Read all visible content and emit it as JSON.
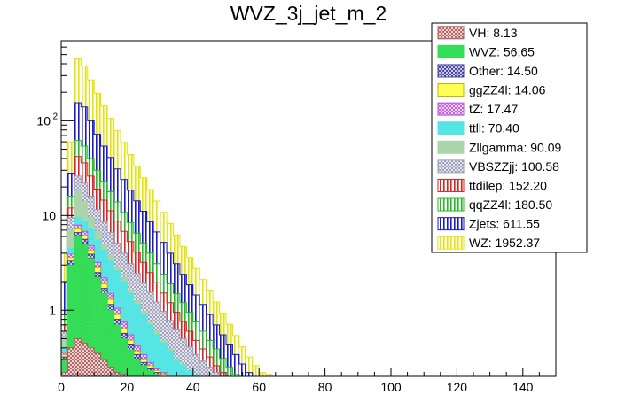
{
  "chart_data": {
    "type": "bar",
    "stacked": true,
    "title": "WVZ_3j_jet_m_2",
    "xlabel": "",
    "ylabel": "",
    "xlim": [
      0,
      150
    ],
    "ylim_log": [
      0.2,
      700
    ],
    "ylog": true,
    "x_ticks": [
      0,
      20,
      40,
      60,
      80,
      100,
      120,
      140
    ],
    "x_tick_labels": [
      "0",
      "20",
      "40",
      "60",
      "80",
      "100",
      "120",
      "140"
    ],
    "y_ticks": [
      {
        "value": 1,
        "label": "1"
      },
      {
        "value": 10,
        "label": "10"
      },
      {
        "value": 100,
        "label": "10",
        "sup": "2"
      }
    ],
    "legend_position": "top-right",
    "series": [
      {
        "name": "VH",
        "label": "VH: 8.13",
        "color": "#b05a5a",
        "pattern": "cross"
      },
      {
        "name": "WVZ",
        "label": "WVZ: 56.65",
        "color": "#33dd55",
        "pattern": "solid"
      },
      {
        "name": "Other",
        "label": "Other: 14.50",
        "color": "#3a3aa0",
        "pattern": "cross"
      },
      {
        "name": "ggZZ4l",
        "label": "ggZZ4l: 14.06",
        "color": "#ffff55",
        "pattern": "solid"
      },
      {
        "name": "tZ",
        "label": "tZ: 17.47",
        "color": "#bb55dd",
        "pattern": "cross"
      },
      {
        "name": "ttll",
        "label": "ttll: 70.40",
        "color": "#55e5e5",
        "pattern": "solid"
      },
      {
        "name": "Zllgamma",
        "label": "Zllgamma: 90.09",
        "color": "#aad5aa",
        "pattern": "solid"
      },
      {
        "name": "VBSZZjj",
        "label": "VBSZZjj: 100.58",
        "color": "#9a9ab8",
        "pattern": "cross"
      },
      {
        "name": "ttdilep",
        "label": "ttdilep: 152.20",
        "color": "#dd2222",
        "pattern": "vlines"
      },
      {
        "name": "qqZZ4l",
        "label": "qqZZ4l: 180.50",
        "color": "#22bb22",
        "pattern": "vlines"
      },
      {
        "name": "Zjets",
        "label": "Zjets: 611.55",
        "color": "#1a1acc",
        "pattern": "vlines"
      },
      {
        "name": "WZ",
        "label": "WZ: 1952.37",
        "color": "#e5e500",
        "pattern": "vlines"
      }
    ],
    "stack_levels": {
      "bin_centers": [
        1,
        3,
        5,
        7,
        9,
        11,
        13,
        15,
        17,
        19,
        21,
        23,
        25,
        27,
        29,
        31,
        33,
        35,
        37,
        39,
        41,
        43,
        45,
        47,
        49,
        51,
        53,
        55,
        57,
        59,
        61,
        63,
        65
      ],
      "VH": [
        0.22,
        0.4,
        0.5,
        0.45,
        0.4,
        0.35,
        0.3,
        0.25,
        0.22,
        0.21,
        0.2,
        0.2,
        0.2,
        0.2,
        0.2,
        0.2,
        0.2,
        0.2,
        0.2,
        0.2,
        0.2,
        0.2,
        0.2,
        0.2,
        0.2,
        0.2,
        0.2,
        0.2,
        0.2,
        0.2,
        0.2,
        0.2,
        0.2
      ],
      "WVZ": [
        0.3,
        3,
        6,
        5,
        3.5,
        2.2,
        1.5,
        1.0,
        0.7,
        0.5,
        0.38,
        0.3,
        0.26,
        0.23,
        0.21,
        0.2,
        0.2,
        0.2,
        0.2,
        0.2,
        0.2,
        0.2,
        0.2,
        0.2,
        0.2,
        0.2,
        0.2,
        0.2,
        0.2,
        0.2,
        0.2,
        0.2,
        0.2
      ],
      "Other": [
        0.32,
        3.3,
        6.6,
        5.6,
        3.9,
        2.5,
        1.7,
        1.15,
        0.8,
        0.57,
        0.43,
        0.34,
        0.28,
        0.24,
        0.22,
        0.2,
        0.2,
        0.2,
        0.2,
        0.2,
        0.2,
        0.2,
        0.2,
        0.2,
        0.2,
        0.2,
        0.2,
        0.2,
        0.2,
        0.2,
        0.2,
        0.2,
        0.2
      ],
      "ggZZ4l": [
        0.34,
        3.6,
        7.2,
        6.1,
        4.3,
        2.8,
        1.9,
        1.3,
        0.9,
        0.64,
        0.48,
        0.37,
        0.3,
        0.26,
        0.23,
        0.21,
        0.2,
        0.2,
        0.2,
        0.2,
        0.2,
        0.2,
        0.2,
        0.2,
        0.2,
        0.2,
        0.2,
        0.2,
        0.2,
        0.2,
        0.2,
        0.2,
        0.2
      ],
      "tZ": [
        0.36,
        3.9,
        7.9,
        6.8,
        4.8,
        3.2,
        2.2,
        1.5,
        1.05,
        0.75,
        0.55,
        0.42,
        0.34,
        0.28,
        0.24,
        0.22,
        0.2,
        0.2,
        0.2,
        0.2,
        0.2,
        0.2,
        0.2,
        0.2,
        0.2,
        0.2,
        0.2,
        0.2,
        0.2,
        0.2,
        0.2,
        0.2,
        0.2
      ],
      "ttll": [
        0.4,
        4.5,
        9.5,
        8.8,
        7.2,
        5.5,
        4.3,
        3.3,
        2.6,
        2.0,
        1.5,
        1.15,
        0.9,
        0.7,
        0.55,
        0.45,
        0.37,
        0.3,
        0.26,
        0.23,
        0.21,
        0.2,
        0.2,
        0.2,
        0.2,
        0.2,
        0.2,
        0.2,
        0.2,
        0.2,
        0.2,
        0.2,
        0.2
      ],
      "Zllgamma": [
        0.5,
        7,
        18,
        14,
        9.5,
        6.8,
        5.0,
        3.8,
        2.9,
        2.2,
        1.65,
        1.25,
        0.97,
        0.76,
        0.6,
        0.48,
        0.39,
        0.31,
        0.27,
        0.23,
        0.21,
        0.2,
        0.2,
        0.2,
        0.2,
        0.2,
        0.2,
        0.2,
        0.2,
        0.2,
        0.2,
        0.2,
        0.2
      ],
      "VBSZZjj": [
        0.6,
        9.5,
        26,
        22,
        16,
        11.5,
        8.6,
        6.6,
        5.1,
        4.0,
        3.1,
        2.45,
        1.95,
        1.55,
        1.22,
        0.97,
        0.78,
        0.62,
        0.5,
        0.41,
        0.34,
        0.29,
        0.25,
        0.22,
        0.2,
        0.2,
        0.2,
        0.2,
        0.2,
        0.2,
        0.2,
        0.2,
        0.2
      ],
      "ttdilep": [
        0.7,
        12,
        42,
        36,
        26,
        19,
        14.5,
        11.2,
        8.7,
        6.8,
        5.3,
        4.1,
        3.2,
        2.5,
        1.95,
        1.52,
        1.2,
        0.95,
        0.76,
        0.6,
        0.48,
        0.39,
        0.32,
        0.26,
        0.22,
        0.2,
        0.2,
        0.2,
        0.2,
        0.2,
        0.2,
        0.2,
        0.2
      ],
      "qqZZ4l": [
        0.9,
        16,
        62,
        54,
        40,
        30,
        23,
        17.8,
        13.9,
        10.8,
        8.4,
        6.5,
        5.1,
        4.0,
        3.1,
        2.4,
        1.9,
        1.5,
        1.2,
        0.95,
        0.75,
        0.6,
        0.48,
        0.39,
        0.31,
        0.25,
        0.21,
        0.2,
        0.2,
        0.2,
        0.2,
        0.2,
        0.2
      ],
      "Zjets": [
        2,
        28,
        155,
        140,
        100,
        72,
        54,
        41,
        31,
        24,
        18.5,
        14.3,
        11.1,
        8.6,
        6.7,
        5.2,
        4.0,
        3.1,
        2.4,
        1.85,
        1.45,
        1.15,
        0.9,
        0.7,
        0.55,
        0.43,
        0.34,
        0.27,
        0.22,
        0.2,
        0.2,
        0.2,
        0.2
      ],
      "WZ": [
        4,
        60,
        450,
        380,
        270,
        195,
        143,
        106,
        79,
        59,
        44,
        33,
        25,
        18.8,
        14.2,
        10.8,
        8.2,
        6.2,
        4.7,
        3.6,
        2.75,
        2.1,
        1.6,
        1.22,
        0.93,
        0.71,
        0.54,
        0.41,
        0.32,
        0.26,
        0.22,
        0.21,
        0.2
      ]
    }
  }
}
